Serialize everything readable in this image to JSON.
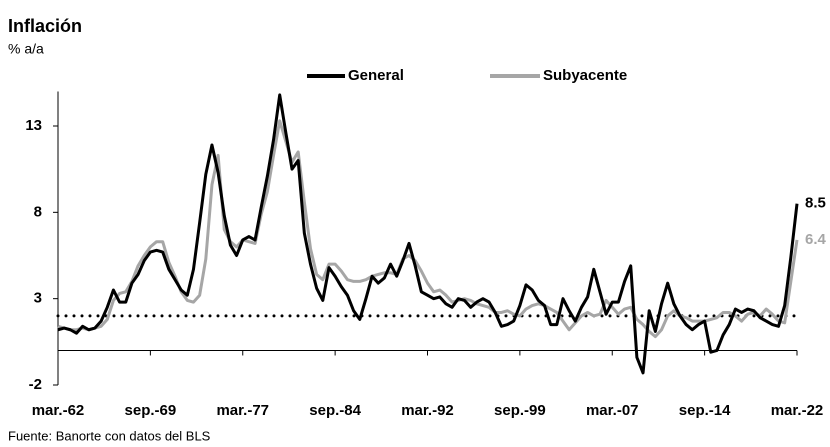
{
  "chart_data": {
    "type": "line",
    "title": "Inflación",
    "subtitle": "% a/a",
    "source": "Fuente: Banorte con datos del BLS",
    "categories": [
      "mar.-62",
      null,
      null,
      null,
      null,
      null,
      null,
      null,
      null,
      null,
      null,
      null,
      null,
      null,
      null,
      "sep.-69",
      null,
      null,
      null,
      null,
      null,
      null,
      null,
      null,
      null,
      null,
      null,
      null,
      null,
      null,
      "mar.-77",
      null,
      null,
      null,
      null,
      null,
      null,
      null,
      null,
      null,
      null,
      null,
      null,
      null,
      null,
      "sep.-84",
      null,
      null,
      null,
      null,
      null,
      null,
      null,
      null,
      null,
      null,
      null,
      null,
      null,
      null,
      "mar.-92",
      null,
      null,
      null,
      null,
      null,
      null,
      null,
      null,
      null,
      null,
      null,
      null,
      null,
      null,
      "sep.-99",
      null,
      null,
      null,
      null,
      null,
      null,
      null,
      null,
      null,
      null,
      null,
      null,
      null,
      null,
      "mar.-07",
      null,
      null,
      null,
      null,
      null,
      null,
      null,
      null,
      null,
      null,
      null,
      null,
      null,
      null,
      "sep.-14",
      null,
      null,
      null,
      null,
      null,
      null,
      null,
      null,
      null,
      null,
      null,
      null,
      null,
      null,
      "mar.-22"
    ],
    "series": [
      {
        "name": "General",
        "color": "#000000",
        "values": [
          1.2,
          1.3,
          1.2,
          1.0,
          1.4,
          1.2,
          1.3,
          1.7,
          2.5,
          3.5,
          2.8,
          2.8,
          3.9,
          4.4,
          5.2,
          5.7,
          5.8,
          5.7,
          4.7,
          4.1,
          3.5,
          3.2,
          4.7,
          7.4,
          10.2,
          11.9,
          10.3,
          7.8,
          6.1,
          5.5,
          6.4,
          6.6,
          6.4,
          8.3,
          10.1,
          12.2,
          14.8,
          12.6,
          10.5,
          11.0,
          6.8,
          5.0,
          3.6,
          2.9,
          4.8,
          4.3,
          3.7,
          3.2,
          2.3,
          1.8,
          3.0,
          4.3,
          3.9,
          4.2,
          5.0,
          4.3,
          5.2,
          6.2,
          4.9,
          3.4,
          3.2,
          3.0,
          3.1,
          2.7,
          2.5,
          3.0,
          2.9,
          2.5,
          2.8,
          3.0,
          2.8,
          2.2,
          1.4,
          1.5,
          1.7,
          2.6,
          3.8,
          3.5,
          2.9,
          2.6,
          1.5,
          1.5,
          3.0,
          2.3,
          1.7,
          2.5,
          3.1,
          4.7,
          3.4,
          2.1,
          2.8,
          2.8,
          4.0,
          4.9,
          -0.4,
          -1.3,
          2.3,
          1.1,
          2.7,
          3.9,
          2.7,
          2.0,
          1.5,
          1.2,
          1.5,
          1.7,
          -0.1,
          0.0,
          0.9,
          1.5,
          2.4,
          2.2,
          2.4,
          2.3,
          1.9,
          1.7,
          1.5,
          1.4,
          2.6,
          5.4,
          8.5
        ]
      },
      {
        "name": "Subyacente",
        "color": "#a6a6a6",
        "values": [
          1.4,
          1.3,
          1.2,
          1.2,
          1.3,
          1.2,
          1.3,
          1.4,
          1.8,
          2.9,
          3.3,
          3.4,
          4.0,
          4.9,
          5.5,
          6.0,
          6.3,
          6.3,
          5.1,
          4.3,
          3.4,
          2.9,
          2.8,
          3.2,
          5.3,
          9.6,
          11.3,
          7.0,
          6.3,
          6.0,
          6.4,
          6.3,
          6.2,
          7.9,
          9.2,
          11.3,
          13.3,
          12.1,
          10.9,
          11.5,
          8.6,
          5.9,
          4.4,
          4.1,
          5.0,
          5.0,
          4.6,
          4.1,
          4.0,
          4.0,
          4.1,
          4.3,
          4.4,
          4.5,
          4.5,
          4.4,
          5.3,
          5.5,
          5.2,
          4.6,
          3.9,
          3.4,
          3.5,
          3.2,
          2.8,
          2.9,
          3.0,
          2.9,
          2.7,
          2.6,
          2.5,
          2.2,
          2.2,
          2.3,
          2.1,
          2.0,
          2.4,
          2.6,
          2.7,
          2.6,
          2.4,
          2.2,
          1.7,
          1.2,
          1.6,
          2.0,
          2.2,
          2.0,
          2.1,
          2.9,
          2.5,
          2.1,
          2.4,
          2.5,
          1.8,
          1.5,
          1.1,
          0.8,
          1.2,
          2.0,
          2.3,
          2.0,
          1.9,
          1.7,
          1.7,
          1.7,
          1.8,
          1.9,
          2.2,
          2.2,
          2.0,
          1.7,
          2.1,
          2.2,
          2.0,
          2.4,
          2.1,
          1.7,
          1.6,
          4.0,
          6.4
        ]
      }
    ],
    "ylim": [
      -2,
      15
    ],
    "yticks": [
      -2,
      3,
      8,
      13
    ],
    "reference_line": {
      "value": 2,
      "style": "dotted"
    },
    "legend": "top",
    "end_labels": true,
    "grid": false
  }
}
